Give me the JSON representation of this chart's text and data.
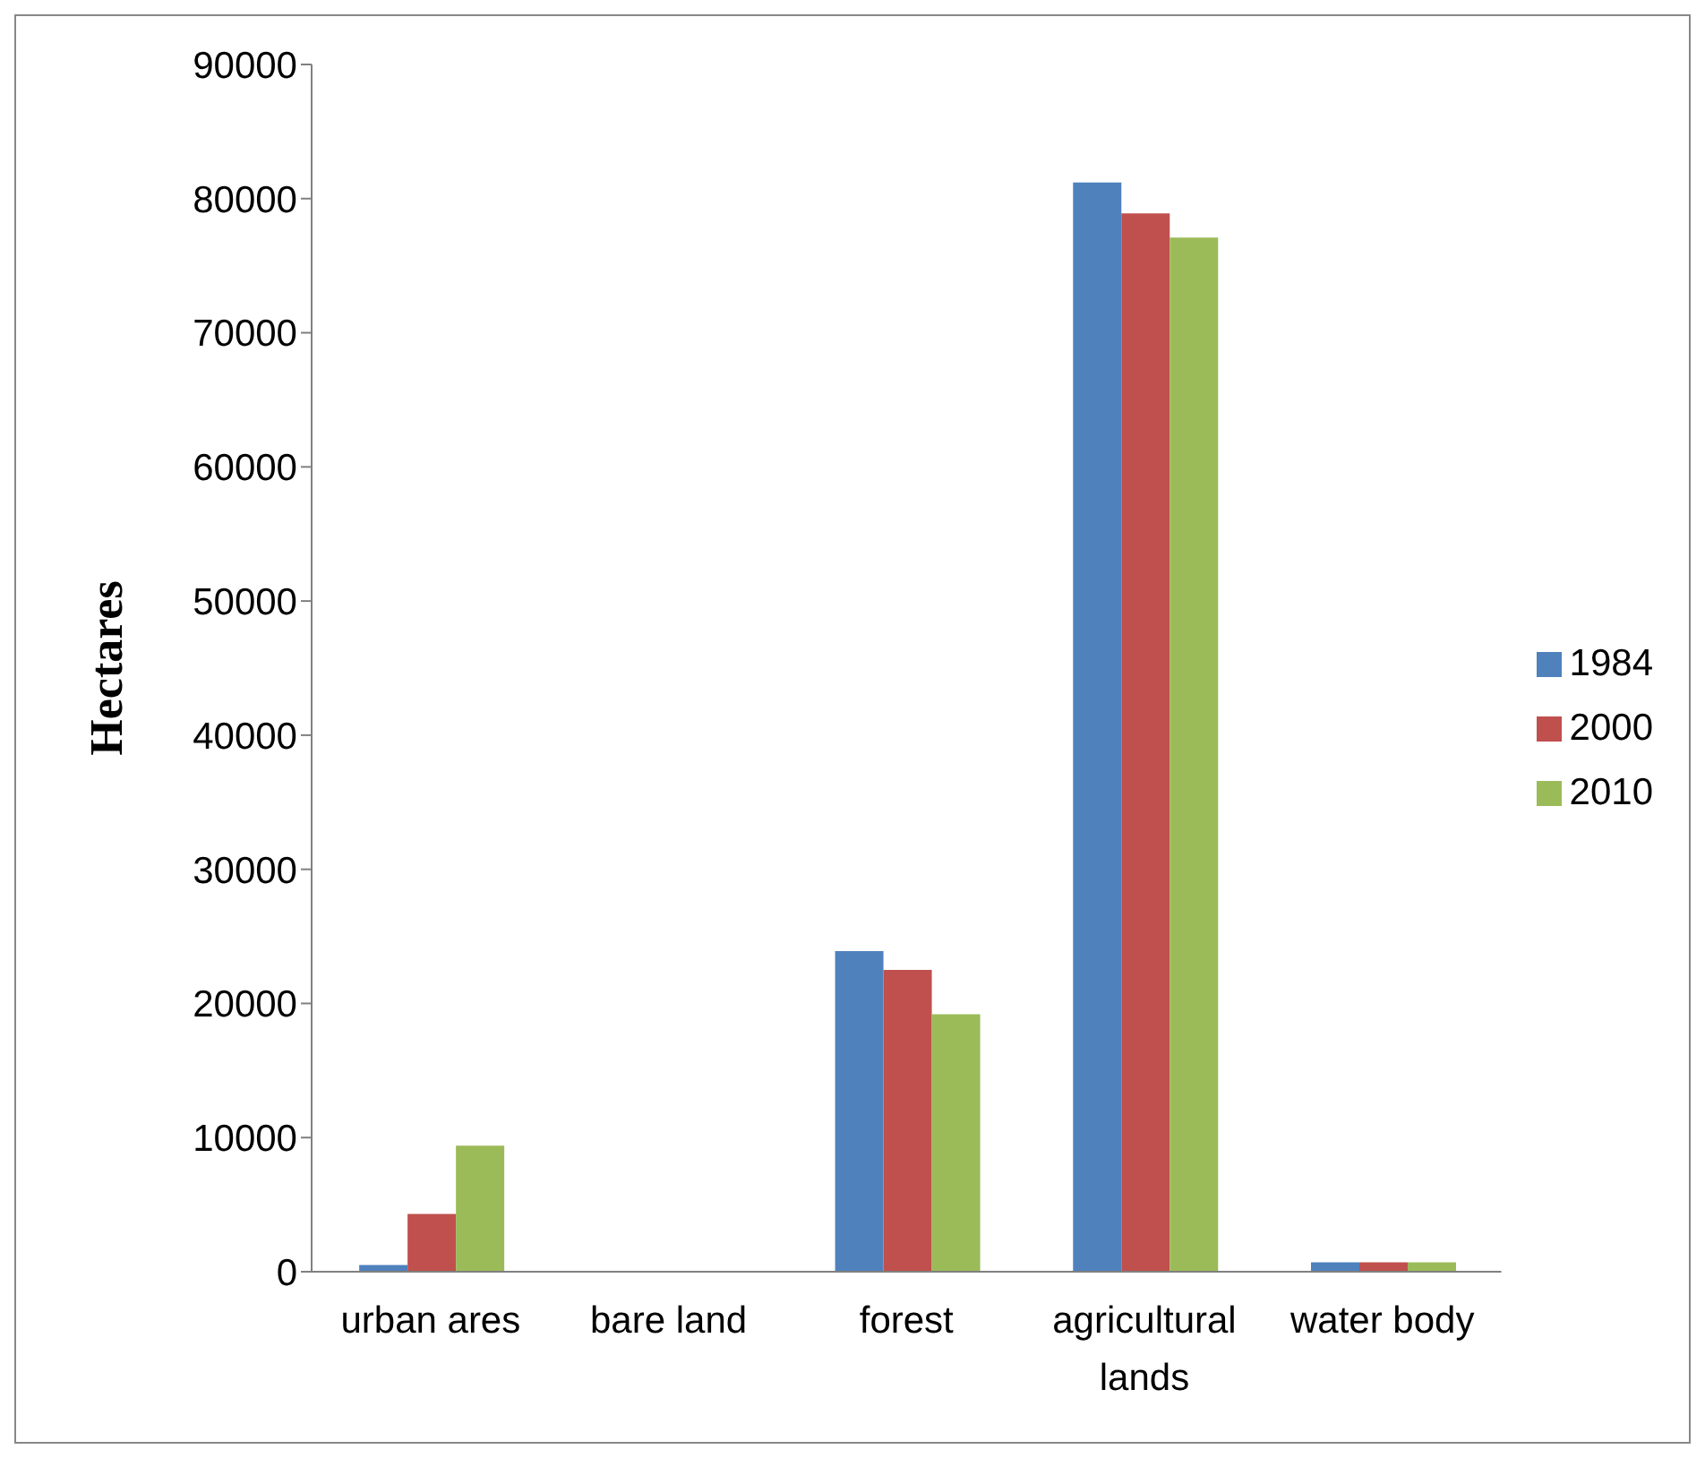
{
  "chart_data": {
    "type": "bar",
    "ylabel": "Hectares",
    "categories": [
      "urban ares",
      "bare land",
      "forest",
      "agricultural lands",
      "water body"
    ],
    "series": [
      {
        "name": "1984",
        "color": "#4f81bd",
        "values": [
          500,
          0,
          23900,
          81200,
          700
        ]
      },
      {
        "name": "2000",
        "color": "#c0504d",
        "values": [
          4300,
          0,
          22500,
          78900,
          700
        ]
      },
      {
        "name": "2010",
        "color": "#9bbb59",
        "values": [
          9400,
          0,
          19200,
          77100,
          700
        ]
      }
    ],
    "ylim": [
      0,
      90000
    ],
    "yticks": [
      0,
      10000,
      20000,
      30000,
      40000,
      50000,
      60000,
      70000,
      80000,
      90000
    ],
    "grid": false,
    "legend": "right"
  }
}
